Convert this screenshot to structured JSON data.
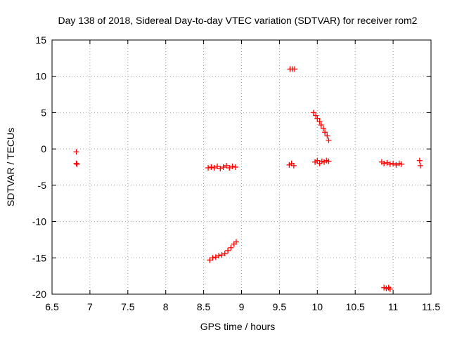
{
  "chart_data": {
    "type": "scatter",
    "title": "Day 138 of 2018, Sidereal Day-to-day VTEC variation (SDTVAR) for receiver rom2",
    "xlabel": "GPS time / hours",
    "ylabel": "SDTVAR / TECUs",
    "xlim": [
      6.5,
      11.5
    ],
    "ylim": [
      -20,
      15
    ],
    "xticks": [
      "6.5",
      "7",
      "7.5",
      "8",
      "8.5",
      "9",
      "9.5",
      "10",
      "10.5",
      "11",
      "11.5"
    ],
    "yticks": [
      "15",
      "10",
      "5",
      "0",
      "-5",
      "-10",
      "-15",
      "-20"
    ],
    "grid": true,
    "marker": "plus",
    "color": "#ff0000",
    "series": [
      {
        "points": [
          [
            6.82,
            -0.4
          ],
          [
            6.82,
            -2.0
          ],
          [
            6.83,
            -2.1
          ],
          [
            8.56,
            -2.6
          ],
          [
            8.6,
            -2.5
          ],
          [
            8.64,
            -2.6
          ],
          [
            8.68,
            -2.4
          ],
          [
            8.72,
            -2.7
          ],
          [
            8.76,
            -2.5
          ],
          [
            8.8,
            -2.3
          ],
          [
            8.84,
            -2.6
          ],
          [
            8.88,
            -2.4
          ],
          [
            8.92,
            -2.5
          ],
          [
            8.58,
            -15.3
          ],
          [
            8.62,
            -15.0
          ],
          [
            8.66,
            -14.9
          ],
          [
            8.7,
            -14.7
          ],
          [
            8.74,
            -14.6
          ],
          [
            8.78,
            -14.4
          ],
          [
            8.82,
            -14.0
          ],
          [
            8.86,
            -13.6
          ],
          [
            8.9,
            -13.1
          ],
          [
            8.93,
            -12.8
          ],
          [
            9.64,
            11.0
          ],
          [
            9.67,
            11.0
          ],
          [
            9.7,
            11.0
          ],
          [
            9.63,
            -2.2
          ],
          [
            9.66,
            -2.0
          ],
          [
            9.69,
            -2.3
          ],
          [
            9.95,
            5.0
          ],
          [
            9.98,
            4.6
          ],
          [
            10.0,
            4.2
          ],
          [
            10.03,
            3.8
          ],
          [
            10.05,
            3.3
          ],
          [
            10.08,
            2.8
          ],
          [
            10.1,
            2.3
          ],
          [
            10.13,
            1.8
          ],
          [
            10.15,
            1.2
          ],
          [
            9.97,
            -1.8
          ],
          [
            10.0,
            -1.6
          ],
          [
            10.03,
            -2.0
          ],
          [
            10.06,
            -1.7
          ],
          [
            10.09,
            -1.8
          ],
          [
            10.12,
            -1.6
          ],
          [
            10.15,
            -1.7
          ],
          [
            10.85,
            -1.8
          ],
          [
            10.88,
            -2.0
          ],
          [
            10.92,
            -1.9
          ],
          [
            10.96,
            -2.1
          ],
          [
            11.0,
            -2.0
          ],
          [
            11.04,
            -2.2
          ],
          [
            11.08,
            -2.0
          ],
          [
            11.11,
            -2.1
          ],
          [
            11.35,
            -1.6
          ],
          [
            11.36,
            -2.3
          ],
          [
            10.88,
            -19.1
          ],
          [
            10.91,
            -19.2
          ],
          [
            10.94,
            -19.1
          ],
          [
            10.96,
            -19.3
          ]
        ]
      }
    ]
  }
}
